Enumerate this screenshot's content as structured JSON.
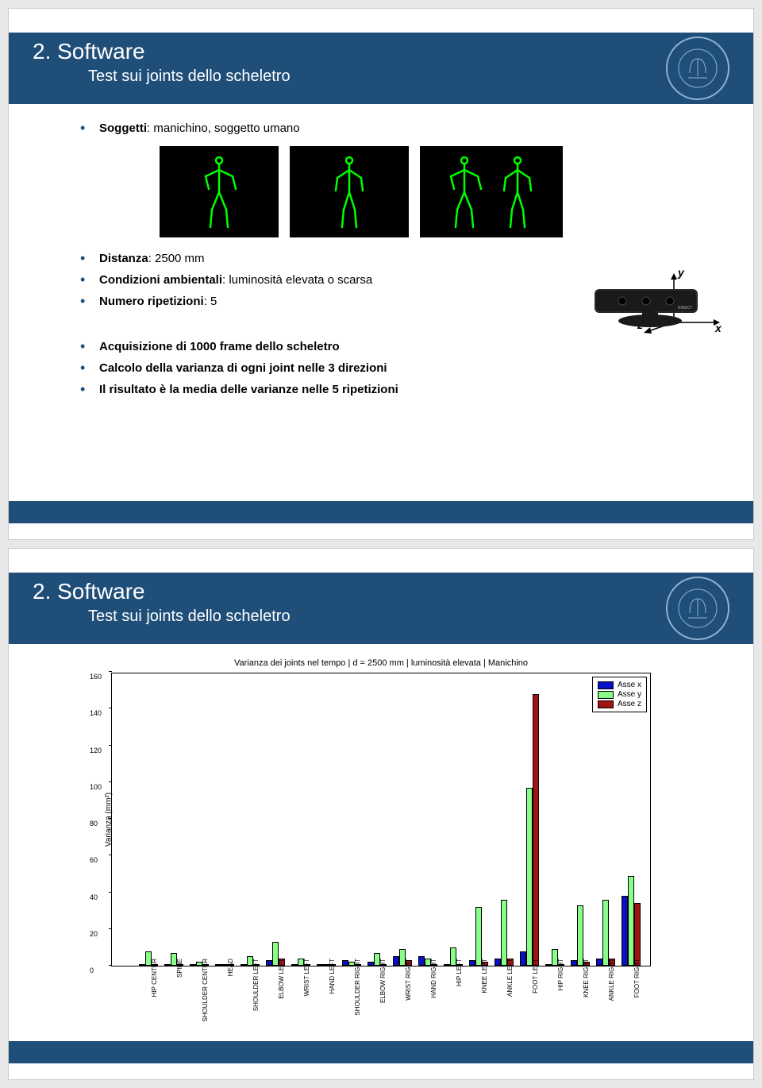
{
  "colors": {
    "band": "#1f4e79",
    "bullet": "#1f4e79",
    "series_x": "#0a10c8",
    "series_y": "#88fd88",
    "series_z": "#a01313",
    "skeleton": "#00ff00"
  },
  "slide1": {
    "title": "2. Software",
    "subtitle": "Test sui joints dello scheletro",
    "bullets_a": [
      {
        "bold": "Soggetti",
        "rest": ": manichino, soggetto umano"
      }
    ],
    "bullets_b": [
      {
        "bold": "Distanza",
        "rest": ": 2500 mm"
      },
      {
        "bold": "Condizioni ambientali",
        "rest": ": luminosità elevata o scarsa"
      },
      {
        "bold": "Numero ripetizioni",
        "rest": ": 5"
      }
    ],
    "bullets_c": [
      {
        "bold": "Acquisizione di 1000 frame dello scheletro",
        "rest": ""
      },
      {
        "bold": "Calcolo della varianza di ogni joint nelle 3 direzioni",
        "rest": ""
      },
      {
        "bold": "Il risultato è la media delle varianze nelle 5 ripetizioni",
        "rest": ""
      }
    ],
    "axes_labels": {
      "x": "x",
      "y": "y",
      "z": "z"
    }
  },
  "slide2": {
    "title": "2. Software",
    "subtitle": "Test sui joints dello scheletro",
    "chart": {
      "title": "Varianza dei joints nel tempo | d = 2500 mm | luminosità elevata | Manichino",
      "ylabel": "Varianza (mm²)",
      "ylim": [
        0,
        160
      ],
      "yticks": [
        0,
        20,
        40,
        60,
        80,
        100,
        120,
        140,
        160
      ],
      "legend": [
        "Asse x",
        "Asse y",
        "Asse z"
      ],
      "categories": [
        "HIP CENTER",
        "SPINE",
        "SHOULDER CENTER",
        "HEAD",
        "SHOULDER LEFT",
        "ELBOW LEFT",
        "WRIST LEFT",
        "HAND LEFT",
        "SHOULDER RIGHT",
        "ELBOW RIGHT",
        "WRIST RIGHT",
        "HAND RIGHT",
        "HIP LEFT",
        "KNEE LEFT",
        "ANKLE LEFT",
        "FOOT LEFT",
        "HIP RIGHT",
        "KNEE RIGHT",
        "ANKLE RIGHT",
        "FOOT RIGHT"
      ],
      "series_x": [
        1,
        1,
        0.5,
        0.5,
        1,
        3,
        1,
        1,
        3,
        2,
        5,
        5,
        1,
        3,
        4,
        8,
        1,
        3,
        4,
        38
      ],
      "series_y": [
        8,
        7,
        2,
        1,
        5,
        13,
        4,
        1,
        2,
        7,
        9,
        4,
        10,
        32,
        36,
        97,
        9,
        33,
        36,
        49
      ],
      "series_z": [
        0.5,
        0.5,
        0.5,
        0.2,
        0.5,
        4,
        0.5,
        0.5,
        0.5,
        0.5,
        3,
        1,
        0.5,
        2,
        4,
        148,
        0.5,
        2,
        4,
        34
      ]
    }
  }
}
